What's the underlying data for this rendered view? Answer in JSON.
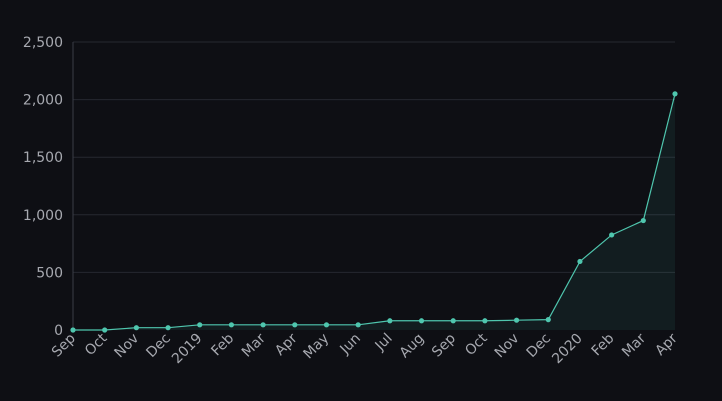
{
  "chart_data": {
    "type": "area",
    "title": "",
    "xlabel": "",
    "ylabel": "",
    "categories": [
      "Sep",
      "Oct",
      "Nov",
      "Dec",
      "2019",
      "Feb",
      "Mar",
      "Apr",
      "May",
      "Jun",
      "Jul",
      "Aug",
      "Sep",
      "Oct",
      "Nov",
      "Dec",
      "2020",
      "Feb",
      "Mar",
      "Apr"
    ],
    "series": [
      {
        "values": [
          0,
          0,
          20,
          20,
          45,
          45,
          45,
          45,
          45,
          45,
          80,
          80,
          80,
          80,
          85,
          90,
          595,
          825,
          950,
          2050
        ]
      }
    ],
    "yticks": [
      0,
      500,
      1000,
      1500,
      2000,
      2500
    ],
    "ytick_labels": [
      "0",
      "500",
      "1,000",
      "1,500",
      "2,000",
      "2,500"
    ],
    "ylim": [
      0,
      2500
    ],
    "grid": true,
    "legend": "none",
    "colors": {
      "line": "#4fc6ae",
      "background": "#0e0f14",
      "grid": "#262830",
      "text": "#a7a9b0"
    }
  }
}
